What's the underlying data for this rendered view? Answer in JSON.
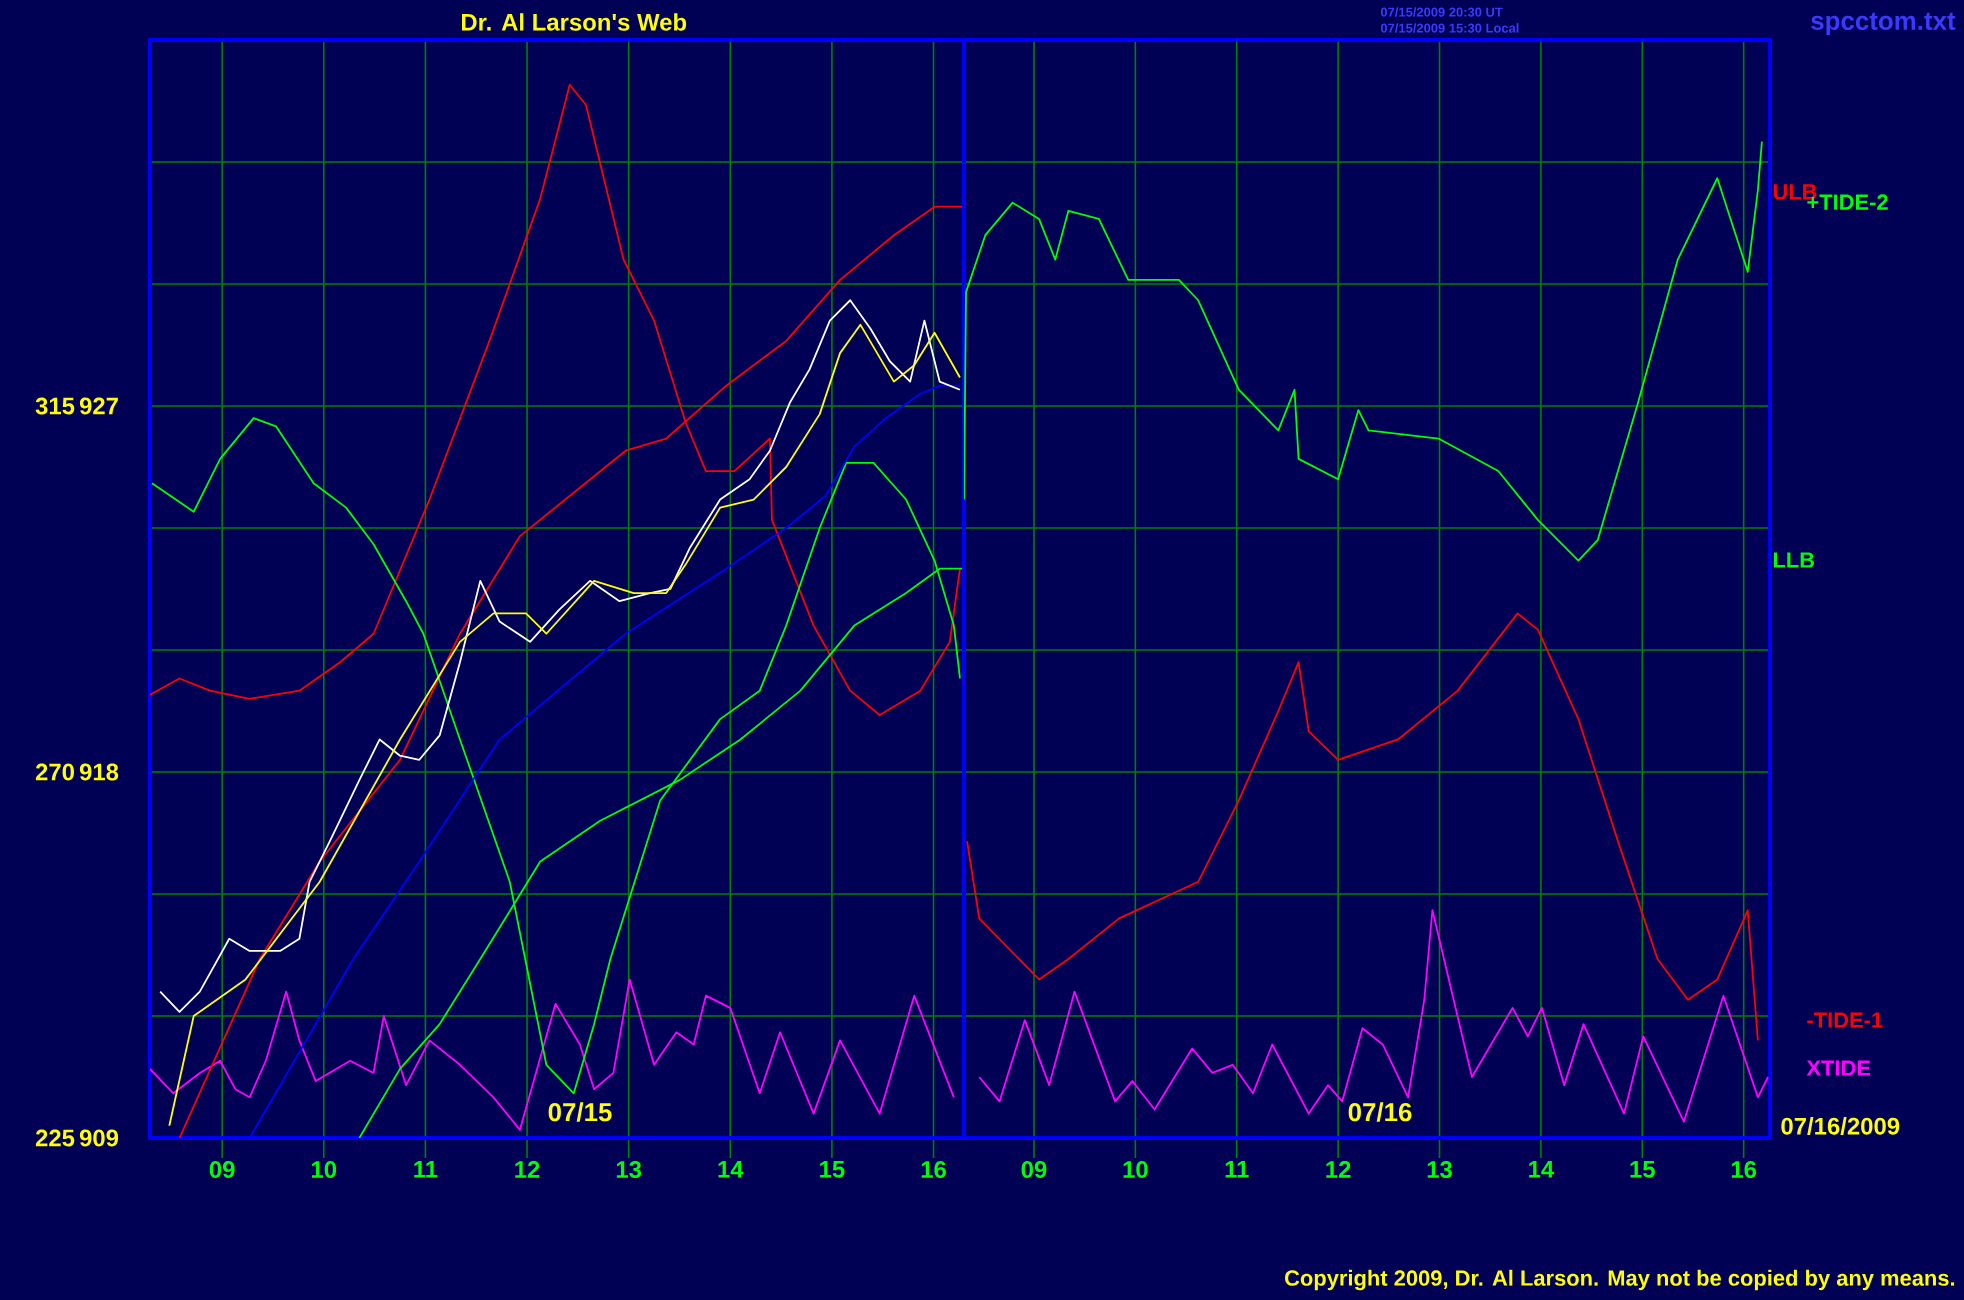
{
  "chart_data": [
    {
      "type": "line",
      "title": "Dr. Al Larson's Web",
      "xlim": [
        8.29,
        16.3
      ],
      "ylim": [
        909,
        936
      ],
      "y2lim": [
        225,
        360
      ],
      "xticks": [
        {
          "value": 9,
          "label": "09"
        },
        10,
        11,
        12,
        13,
        14,
        15,
        16
      ],
      "yticks": [
        909,
        {
          "value": 912,
          "label": null
        },
        {
          "value": 915,
          "label": null
        },
        918,
        {
          "value": 921,
          "label": null
        },
        {
          "value": 924,
          "label": null
        },
        927,
        {
          "value": 930,
          "label": null
        },
        {
          "value": 933,
          "label": null
        }
      ],
      "y2ticks": [
        225,
        270,
        315
      ],
      "grid": true,
      "marker": "none",
      "line_style": "solid",
      "series": [
        {
          "color": "#ff00ff",
          "x": [
            8.29,
            8.52,
            8.78,
            8.98,
            9.13,
            9.27,
            9.43,
            9.63,
            9.76,
            9.92,
            10.26,
            10.49,
            10.59,
            10.81,
            11.04,
            11.34,
            11.67,
            11.93,
            12.28,
            12.52,
            12.66,
            12.85,
            13.01,
            13.25,
            13.47,
            13.64,
            13.76,
            14.0,
            14.29,
            14.49,
            14.82,
            15.08,
            15.47,
            15.81,
            16.2
          ],
          "values": [
            910.7,
            910.1,
            910.6,
            910.9,
            910.2,
            910.0,
            910.9,
            912.6,
            911.4,
            910.4,
            910.9,
            910.6,
            912.0,
            910.3,
            911.4,
            910.8,
            910.0,
            909.2,
            912.3,
            911.3,
            910.2,
            910.6,
            912.9,
            910.8,
            911.6,
            911.3,
            912.5,
            912.2,
            910.1,
            911.6,
            909.6,
            911.4,
            909.6,
            912.5,
            910.0
          ]
        },
        {
          "color": "#ff0000",
          "x": [
            8.29,
            8.58,
            8.88,
            9.27,
            9.76,
            10.16,
            10.49,
            11.04,
            11.63,
            12.13,
            12.42,
            12.58,
            12.95,
            13.25,
            13.56,
            13.76,
            14.04,
            14.39,
            14.41,
            14.82,
            15.18,
            15.47,
            15.87,
            16.16,
            16.26
          ],
          "values": [
            919.9,
            920.3,
            920.0,
            919.8,
            920.0,
            920.7,
            921.4,
            924.7,
            928.6,
            932.1,
            934.9,
            934.4,
            930.6,
            929.1,
            926.6,
            925.4,
            925.4,
            926.2,
            924.2,
            921.6,
            920.0,
            919.4,
            920.0,
            921.2,
            923.0
          ]
        },
        {
          "color": "#ff0000",
          "x": [
            8.58,
            9.37,
            9.96,
            10.75,
            11.34,
            11.93,
            12.97,
            13.37,
            13.96,
            14.55,
            15.08,
            15.61,
            16.01,
            16.28
          ],
          "values": [
            909.0,
            913.4,
            915.8,
            918.3,
            921.4,
            923.8,
            925.9,
            926.2,
            927.5,
            928.6,
            930.1,
            931.2,
            931.9,
            931.9
          ]
        },
        {
          "color": "#00ff00",
          "x": [
            8.31,
            8.72,
            8.98,
            9.31,
            9.53,
            9.9,
            10.22,
            10.49,
            10.81,
            10.98,
            11.34,
            11.83,
            12.19,
            12.46,
            12.66,
            12.82,
            13.31,
            13.9,
            14.29,
            14.55,
            14.88,
            15.14,
            15.41,
            15.73,
            16.01,
            16.2,
            16.26
          ],
          "values": [
            925.1,
            924.4,
            925.7,
            926.7,
            926.5,
            925.1,
            924.5,
            923.6,
            922.2,
            921.4,
            918.8,
            915.3,
            910.8,
            910.1,
            911.8,
            913.4,
            917.3,
            919.3,
            920.0,
            921.6,
            924.0,
            925.6,
            925.6,
            924.7,
            923.2,
            921.6,
            920.3
          ]
        },
        {
          "color": "#00ff00",
          "x": [
            10.35,
            10.75,
            11.14,
            11.54,
            12.13,
            12.72,
            13.5,
            14.1,
            14.69,
            15.22,
            15.73,
            16.06,
            16.28
          ],
          "values": [
            909.0,
            910.7,
            911.8,
            913.4,
            915.8,
            916.8,
            917.8,
            918.8,
            920.0,
            921.6,
            922.4,
            923.0,
            923.0
          ]
        },
        {
          "color": "#0000ff",
          "x": [
            9.27,
            10.29,
            10.94,
            11.73,
            12.97,
            13.9,
            14.55,
            14.94,
            15.22,
            15.53,
            15.87,
            16.06,
            16.26
          ],
          "values": [
            909.0,
            913.4,
            915.8,
            918.8,
            921.4,
            922.9,
            924.0,
            924.8,
            926.0,
            926.7,
            927.3,
            927.5,
            927.5
          ]
        },
        {
          "color": "#ffffff",
          "x": [
            8.39,
            8.58,
            8.78,
            9.07,
            9.27,
            9.57,
            9.76,
            9.86,
            10.06,
            10.35,
            10.55,
            10.75,
            10.94,
            11.14,
            11.34,
            11.54,
            11.73,
            12.03,
            12.32,
            12.62,
            12.91,
            13.21,
            13.41,
            13.6,
            13.9,
            14.19,
            14.39,
            14.59,
            14.78,
            14.98,
            15.18,
            15.38,
            15.57,
            15.77,
            15.91,
            16.06,
            16.26
          ],
          "values": [
            912.6,
            912.1,
            912.6,
            913.9,
            913.6,
            913.6,
            913.9,
            915.3,
            916.3,
            917.8,
            918.8,
            918.4,
            918.3,
            918.9,
            920.7,
            922.7,
            921.7,
            921.2,
            922.0,
            922.7,
            922.2,
            922.4,
            922.5,
            923.5,
            924.7,
            925.2,
            925.9,
            927.1,
            927.9,
            929.1,
            929.6,
            928.9,
            928.1,
            927.6,
            929.1,
            927.6,
            927.4
          ]
        },
        {
          "color": "#ffff00",
          "x": [
            8.48,
            8.72,
            9.23,
            9.96,
            10.75,
            11.34,
            11.67,
            11.99,
            12.19,
            12.66,
            13.05,
            13.37,
            13.56,
            13.9,
            14.23,
            14.55,
            14.88,
            15.08,
            15.28,
            15.61,
            15.81,
            16.01,
            16.26
          ],
          "values": [
            909.3,
            912.0,
            912.9,
            915.3,
            918.8,
            921.2,
            921.9,
            921.9,
            921.4,
            922.7,
            922.4,
            922.4,
            923.1,
            924.5,
            924.7,
            925.5,
            926.8,
            928.3,
            929.0,
            927.6,
            928.0,
            928.8,
            927.7
          ]
        }
      ],
      "annotations": [
        "07/15",
        "07/15/2009 20:30 UT",
        "07/15/2009 15:30 Local"
      ]
    },
    {
      "type": "line",
      "xlim": [
        8.31,
        16.26
      ],
      "ylim": [
        909,
        936
      ],
      "xticks": [
        {
          "value": 9,
          "label": "09"
        },
        10,
        11,
        12,
        13,
        14,
        15,
        16
      ],
      "yticks": [
        909,
        912,
        915,
        918,
        921,
        924,
        927,
        930,
        933
      ],
      "tick_labels": "x",
      "grid": true,
      "marker": "none",
      "line_style": "solid",
      "series": [
        {
          "color": "#ff00ff",
          "x": [
            8.46,
            8.66,
            8.91,
            9.15,
            9.4,
            9.8,
            9.97,
            10.19,
            10.56,
            10.76,
            10.96,
            11.16,
            11.35,
            11.71,
            11.9,
            12.04,
            12.24,
            12.44,
            12.69,
            12.85,
            12.93,
            13.32,
            13.72,
            13.87,
            14.01,
            14.23,
            14.42,
            14.82,
            15.01,
            15.41,
            15.8,
            16.14,
            16.24
          ],
          "values": [
            910.5,
            909.9,
            911.9,
            910.3,
            912.6,
            909.9,
            910.4,
            909.7,
            911.2,
            910.6,
            910.8,
            910.1,
            911.3,
            909.6,
            910.3,
            909.9,
            911.7,
            911.3,
            910.0,
            912.4,
            914.6,
            910.5,
            912.2,
            911.5,
            912.2,
            910.3,
            911.8,
            909.6,
            911.5,
            909.4,
            912.5,
            910.0,
            910.5
          ]
        },
        {
          "color": "#ff0000",
          "x": [
            8.34,
            8.46,
            9.05,
            9.34,
            9.84,
            10.62,
            11.02,
            11.41,
            11.61,
            11.71,
            12.0,
            12.59,
            13.18,
            13.77,
            13.97,
            14.37,
            14.76,
            15.15,
            15.45,
            15.74,
            16.04,
            16.14
          ],
          "values": [
            916.3,
            914.4,
            912.9,
            913.4,
            914.4,
            915.3,
            917.3,
            919.5,
            920.7,
            919.0,
            918.3,
            918.8,
            920.0,
            921.9,
            921.5,
            919.3,
            916.3,
            913.4,
            912.4,
            912.9,
            914.6,
            911.4
          ]
        },
        {
          "color": "#00ff00",
          "x": [
            8.31,
            8.33,
            8.52,
            8.79,
            9.05,
            9.21,
            9.34,
            9.64,
            9.93,
            10.43,
            10.62,
            11.02,
            11.41,
            11.57,
            11.61,
            12.0,
            12.2,
            12.3,
            12.99,
            13.58,
            13.97,
            14.37,
            14.56,
            14.96,
            15.35,
            15.74,
            16.04,
            16.14,
            16.18
          ],
          "values": [
            924.7,
            929.8,
            931.2,
            932.0,
            931.6,
            930.6,
            931.8,
            931.6,
            930.1,
            930.1,
            929.6,
            927.4,
            926.4,
            927.4,
            925.7,
            925.2,
            926.9,
            926.4,
            926.2,
            925.4,
            924.2,
            923.2,
            923.7,
            927.1,
            930.6,
            932.6,
            930.3,
            932.3,
            933.5
          ]
        }
      ],
      "annotations": [
        "07/16",
        "07/16/2009",
        "ULB",
        "+TIDE-2",
        "LLB",
        "-TIDE-1",
        "XTIDE",
        "spcctom.txt",
        "Copyright 2009, Dr. Al Larson. May not be copied by any means."
      ]
    }
  ]
}
